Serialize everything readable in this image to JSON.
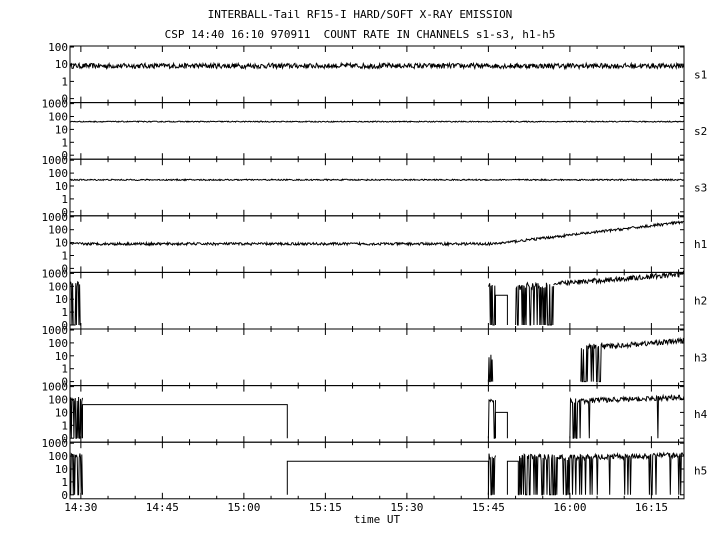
{
  "chart_data": {
    "type": "line",
    "title": "INTERBALL-Tail RF15-I HARD/SOFT X-RAY EMISSION",
    "subtitle": "CSP 14:40 16:10 970911  COUNT RATE IN CHANNELS s1-s3, h1-h5",
    "xlabel": "time UT",
    "x_ticks": [
      "14:30",
      "14:45",
      "15:00",
      "15:15",
      "15:30",
      "15:45",
      "16:00",
      "16:15"
    ],
    "x_tick_minutes": [
      0,
      15,
      30,
      45,
      60,
      75,
      90,
      105
    ],
    "xlim_minutes": [
      -2,
      111
    ],
    "y_scale": "log",
    "panels": [
      {
        "name": "s1",
        "y_ticks": [
          "100",
          "10",
          "1",
          "0"
        ],
        "y_tick_values": [
          100,
          10,
          1,
          0
        ],
        "segments": [
          {
            "from": -2,
            "to": 111,
            "start": 8,
            "end": 8,
            "noise": 0.15,
            "drops": 0.0
          }
        ]
      },
      {
        "name": "s2",
        "y_ticks": [
          "1000",
          "100",
          "10",
          "1",
          "0"
        ],
        "y_tick_values": [
          1000,
          100,
          10,
          1,
          0
        ],
        "segments": [
          {
            "from": -2,
            "to": 111,
            "start": 40,
            "end": 40,
            "noise": 0.04,
            "drops": 0.0
          }
        ]
      },
      {
        "name": "s3",
        "y_ticks": [
          "1000",
          "100",
          "10",
          "1",
          "0"
        ],
        "y_tick_values": [
          1000,
          100,
          10,
          1,
          0
        ],
        "segments": [
          {
            "from": -2,
            "to": 111,
            "start": 30,
            "end": 30,
            "noise": 0.05,
            "drops": 0.0
          }
        ]
      },
      {
        "name": "h1",
        "y_ticks": [
          "1000",
          "100",
          "10",
          "1",
          "0"
        ],
        "y_tick_values": [
          1000,
          100,
          10,
          1,
          0
        ],
        "segments": [
          {
            "from": -2,
            "to": 76,
            "start": 8,
            "end": 8,
            "noise": 0.1,
            "drops": 0.0
          },
          {
            "from": 76,
            "to": 111,
            "start": 8,
            "end": 400,
            "noise": 0.1,
            "drops": 0.0
          }
        ]
      },
      {
        "name": "h2",
        "y_ticks": [
          "1000",
          "100",
          "10",
          "1",
          "0"
        ],
        "y_tick_values": [
          1000,
          100,
          10,
          1,
          0
        ],
        "segments": [
          {
            "from": -2,
            "to": 0,
            "start": 150,
            "end": 150,
            "noise": 0.2,
            "drops": 0.5
          },
          {
            "from": 75,
            "to": 76.3,
            "start": 150,
            "end": 150,
            "noise": 0.2,
            "drops": 0.5
          },
          {
            "from": 76.3,
            "to": 78.5,
            "start": 20,
            "end": 20,
            "noise": 0,
            "drops": 0.0
          },
          {
            "from": 80,
            "to": 87,
            "start": 90,
            "end": 150,
            "noise": 0.25,
            "drops": 0.35
          },
          {
            "from": 87,
            "to": 111,
            "start": 150,
            "end": 900,
            "noise": 0.2,
            "drops": 0.0
          }
        ]
      },
      {
        "name": "h3",
        "y_ticks": [
          "1000",
          "100",
          "10",
          "1",
          "0"
        ],
        "y_tick_values": [
          1000,
          100,
          10,
          1,
          0
        ],
        "segments": [
          {
            "from": 75,
            "to": 75.8,
            "start": 8,
            "end": 8,
            "noise": 0.2,
            "drops": 0.5
          },
          {
            "from": 92,
            "to": 96,
            "start": 50,
            "end": 60,
            "noise": 0.2,
            "drops": 0.35
          },
          {
            "from": 96,
            "to": 111,
            "start": 50,
            "end": 150,
            "noise": 0.2,
            "drops": 0.0
          }
        ]
      },
      {
        "name": "h4",
        "y_ticks": [
          "1000",
          "100",
          "10",
          "1",
          "0"
        ],
        "y_tick_values": [
          1000,
          100,
          10,
          1,
          0
        ],
        "segments": [
          {
            "from": -2,
            "to": 0.3,
            "start": 100,
            "end": 100,
            "noise": 0.2,
            "drops": 0.4
          },
          {
            "from": 0.3,
            "to": 38,
            "start": 40,
            "end": 40,
            "noise": 0,
            "drops": 0.0
          },
          {
            "from": 75,
            "to": 76.3,
            "start": 100,
            "end": 100,
            "noise": 0.2,
            "drops": 0.5
          },
          {
            "from": 76.3,
            "to": 78.5,
            "start": 10,
            "end": 10,
            "noise": 0,
            "drops": 0.0
          },
          {
            "from": 90,
            "to": 92,
            "start": 80,
            "end": 80,
            "noise": 0.2,
            "drops": 0.4
          },
          {
            "from": 92,
            "to": 111,
            "start": 80,
            "end": 150,
            "noise": 0.2,
            "drops": 0.02
          }
        ]
      },
      {
        "name": "h5",
        "y_ticks": [
          "1000",
          "100",
          "10",
          "1",
          "0"
        ],
        "y_tick_values": [
          1000,
          100,
          10,
          1,
          0
        ],
        "segments": [
          {
            "from": -2,
            "to": 0.3,
            "start": 100,
            "end": 100,
            "noise": 0.2,
            "drops": 0.4
          },
          {
            "from": 38,
            "to": 75,
            "start": 40,
            "end": 40,
            "noise": 0,
            "drops": 0.0
          },
          {
            "from": 75,
            "to": 76.3,
            "start": 100,
            "end": 100,
            "noise": 0.2,
            "drops": 0.5
          },
          {
            "from": 78.5,
            "to": 80.5,
            "start": 40,
            "end": 40,
            "noise": 0,
            "drops": 0.0
          },
          {
            "from": 80.5,
            "to": 90,
            "start": 80,
            "end": 80,
            "noise": 0.25,
            "drops": 0.35
          },
          {
            "from": 90,
            "to": 111,
            "start": 80,
            "end": 120,
            "noise": 0.2,
            "drops": 0.1
          }
        ]
      }
    ]
  }
}
